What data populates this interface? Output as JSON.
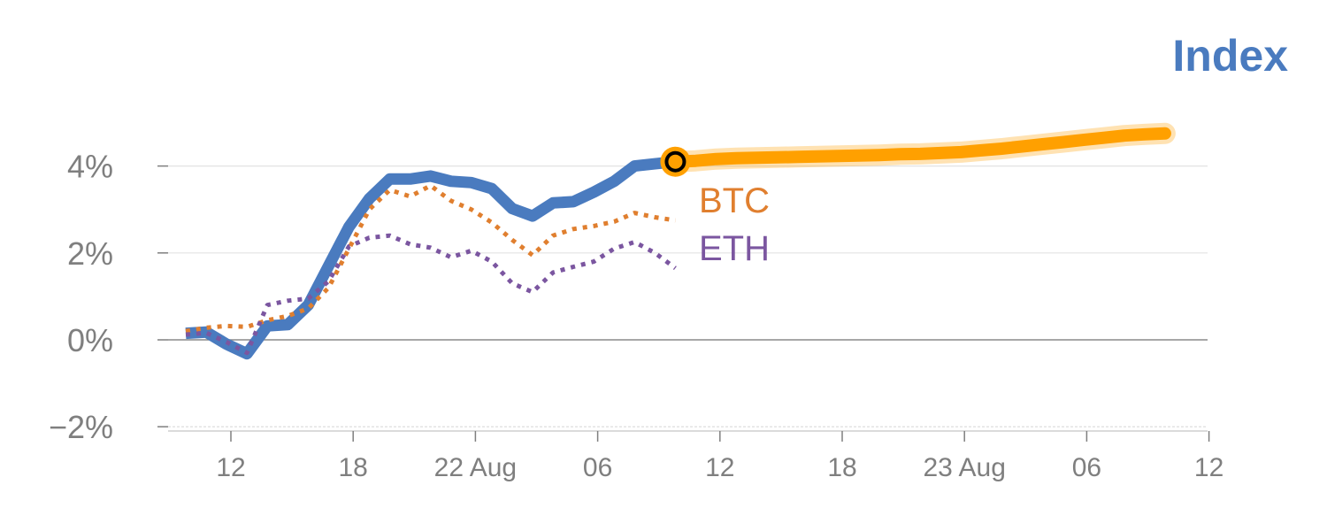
{
  "chart_data": {
    "type": "line",
    "title": "Index",
    "xlabel": "",
    "ylabel": "",
    "ylim": [
      -2.1,
      5
    ],
    "y_ticks": [
      {
        "value": 4,
        "label": "4%"
      },
      {
        "value": 2,
        "label": "2%"
      },
      {
        "value": 0,
        "label": "0%"
      },
      {
        "value": -2,
        "label": "−2%"
      }
    ],
    "x_ticks": [
      "12",
      "18",
      "22 Aug",
      "06",
      "12",
      "18",
      "23 Aug",
      "06",
      "12"
    ],
    "grid": true,
    "series": [
      {
        "key": "index",
        "style": "solid",
        "values": [
          0.15,
          0.18,
          -0.1,
          -0.32,
          0.32,
          0.35,
          0.8,
          1.7,
          2.6,
          3.25,
          3.7,
          3.7,
          3.77,
          3.65,
          3.62,
          3.48,
          3.02,
          2.85,
          3.15,
          3.18,
          3.4,
          3.65,
          4.0,
          4.05,
          4.1
        ]
      },
      {
        "key": "btc",
        "name": "BTC",
        "style": "dotted",
        "values": [
          0.2,
          0.28,
          0.32,
          0.3,
          0.45,
          0.55,
          0.72,
          1.2,
          2.1,
          3.0,
          3.45,
          3.3,
          3.55,
          3.2,
          3.0,
          2.7,
          2.3,
          1.95,
          2.4,
          2.55,
          2.62,
          2.72,
          2.92,
          2.82,
          2.75
        ]
      },
      {
        "key": "eth",
        "name": "ETH",
        "style": "dotted",
        "values": [
          0.12,
          0.16,
          -0.05,
          -0.3,
          0.8,
          0.9,
          0.95,
          1.35,
          2.15,
          2.35,
          2.4,
          2.2,
          2.12,
          1.9,
          2.05,
          1.8,
          1.3,
          1.1,
          1.55,
          1.68,
          1.8,
          2.1,
          2.25,
          2.0,
          1.65
        ]
      },
      {
        "key": "projection",
        "style": "band",
        "x_start_index": 24,
        "x_end_index": 48,
        "values": [
          4.1,
          4.12,
          4.16,
          4.18,
          4.19,
          4.2,
          4.21,
          4.22,
          4.23,
          4.24,
          4.25,
          4.27,
          4.28,
          4.3,
          4.32,
          4.36,
          4.4,
          4.45,
          4.5,
          4.55,
          4.6,
          4.65,
          4.7,
          4.73,
          4.75
        ]
      }
    ]
  },
  "colors": {
    "index": "#4a7bbf",
    "btc": "#e07f2f",
    "eth": "#7b56a0",
    "projection": "#ffa000",
    "axis": "#7f7f7f",
    "grid": "#e3e3e3"
  }
}
